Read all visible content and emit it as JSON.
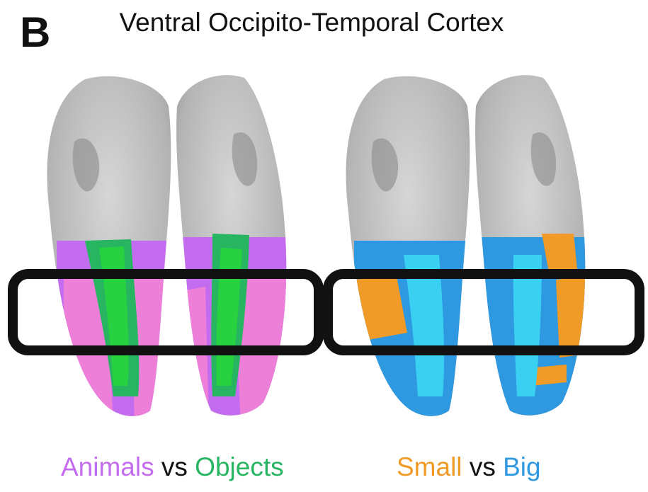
{
  "panel_label": "B",
  "title": "Ventral Occipito-Temporal Cortex",
  "legend_left": {
    "term_a": "Animals",
    "vs": "vs",
    "term_b": "Objects"
  },
  "legend_right": {
    "term_a": "Small",
    "vs": "vs",
    "term_b": "Big"
  },
  "colors": {
    "animals": "#c46cf0",
    "animals_core": "#ee7fd8",
    "objects": "#27b562",
    "objects_core": "#27d13f",
    "small": "#f09a28",
    "big": "#2e98e0",
    "big_core": "#3ad0f2",
    "cortex": "#b7b7b7",
    "frame": "#111111"
  }
}
